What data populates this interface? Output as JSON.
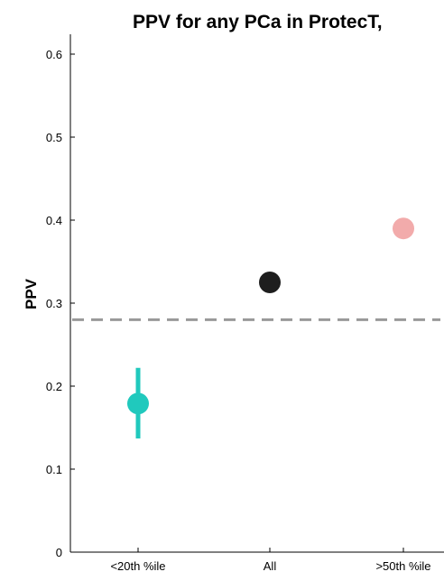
{
  "chart_data": {
    "type": "scatter",
    "title": "PPV for any PCa in ProtecT,",
    "xlabel": "",
    "ylabel": "PPV",
    "ylim": [
      0,
      0.63
    ],
    "yticks": [
      "0",
      "0.1",
      "0.2",
      "0.3",
      "0.4",
      "0.5",
      "0.6"
    ],
    "categories": [
      "<20th %ile",
      "All",
      ">50th %ile"
    ],
    "points": [
      {
        "category": "<20th %ile",
        "y": 0.179,
        "err_low": 0.137,
        "err_high": 0.222,
        "color": "#20c9bd"
      },
      {
        "category": "All",
        "y": 0.325,
        "color": "#1e1e1e"
      },
      {
        "category": ">50th %ile",
        "y": 0.39,
        "color": "#f2abab"
      }
    ],
    "reference_line": {
      "y": 0.28,
      "style": "dashed",
      "color": "#999999"
    },
    "grid": false
  }
}
